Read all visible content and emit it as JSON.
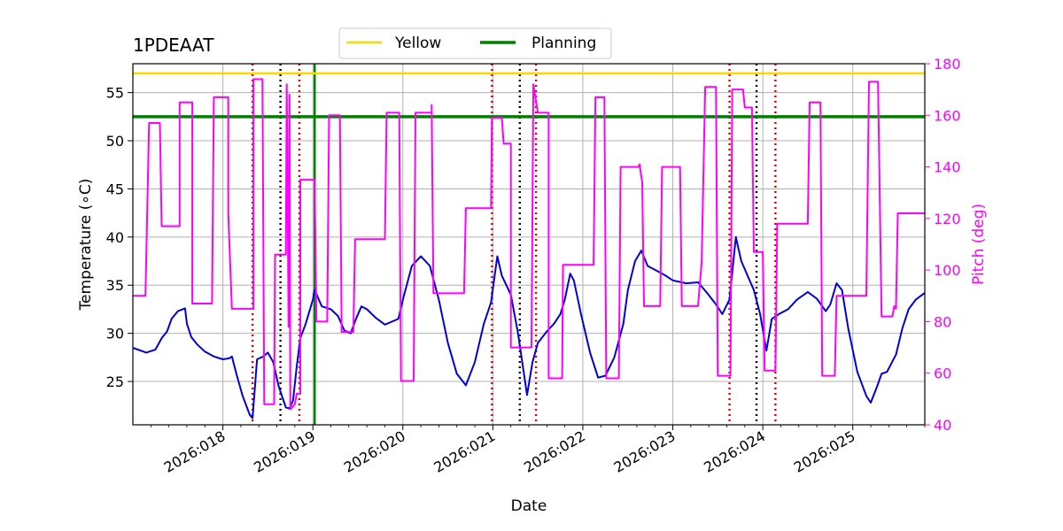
{
  "chart_data": {
    "type": "line",
    "title": "1PDEAAT",
    "xlabel": "Date",
    "ylabel_left": "Temperature ($^\\circ$C)",
    "ylabel_left_display": "Temperature (∘C)",
    "ylabel_right": "Pitch (deg)",
    "xlim": [
      17.0,
      25.8
    ],
    "ylim_left": [
      20.5,
      58.0
    ],
    "ylim_right": [
      40,
      180
    ],
    "x_ticks": [
      18,
      19,
      20,
      21,
      22,
      23,
      24,
      25
    ],
    "x_tick_labels": [
      "2026:018",
      "2026:019",
      "2026:020",
      "2026:021",
      "2026:022",
      "2026:023",
      "2026:024",
      "2026:025"
    ],
    "y_ticks_left": [
      25,
      30,
      35,
      40,
      45,
      50,
      55
    ],
    "y_ticks_right": [
      40,
      60,
      80,
      100,
      120,
      140,
      160,
      180
    ],
    "legend": [
      {
        "label": "Yellow",
        "color": "#ffd700"
      },
      {
        "label": "Planning",
        "color": "#008000"
      }
    ],
    "hlines": [
      {
        "name": "Yellow",
        "y": 57.0,
        "color": "#ffd700"
      },
      {
        "name": "Planning",
        "y": 52.5,
        "color": "#008000"
      }
    ],
    "vline_solid_green": [
      19.02
    ],
    "vlines_dotted_red": [
      18.33,
      18.85,
      20.99,
      21.48,
      23.63,
      24.14
    ],
    "vlines_dotted_black": [
      18.64,
      21.3,
      23.93
    ],
    "series": [
      {
        "name": "Temperature",
        "axis": "left",
        "color": "#0000dd",
        "points": [
          [
            17.0,
            28.5
          ],
          [
            17.15,
            28.0
          ],
          [
            17.25,
            28.3
          ],
          [
            17.32,
            29.5
          ],
          [
            17.38,
            30.2
          ],
          [
            17.43,
            31.5
          ],
          [
            17.5,
            32.3
          ],
          [
            17.58,
            32.6
          ],
          [
            17.6,
            31.0
          ],
          [
            17.65,
            29.6
          ],
          [
            17.72,
            28.8
          ],
          [
            17.8,
            28.1
          ],
          [
            17.9,
            27.6
          ],
          [
            18.0,
            27.3
          ],
          [
            18.07,
            27.4
          ],
          [
            18.1,
            27.6
          ],
          [
            18.15,
            25.8
          ],
          [
            18.22,
            23.5
          ],
          [
            18.3,
            21.5
          ],
          [
            18.33,
            21.2
          ],
          [
            18.38,
            27.3
          ],
          [
            18.45,
            27.6
          ],
          [
            18.5,
            28.0
          ],
          [
            18.56,
            27.0
          ],
          [
            18.62,
            24.5
          ],
          [
            18.7,
            22.3
          ],
          [
            18.74,
            22.2
          ],
          [
            18.78,
            23.0
          ],
          [
            18.82,
            26.5
          ],
          [
            18.86,
            29.5
          ],
          [
            18.92,
            31.0
          ],
          [
            19.0,
            33.5
          ],
          [
            19.02,
            34.5
          ],
          [
            19.1,
            32.8
          ],
          [
            19.2,
            32.5
          ],
          [
            19.28,
            31.8
          ],
          [
            19.35,
            30.3
          ],
          [
            19.42,
            30.0
          ],
          [
            19.48,
            31.5
          ],
          [
            19.54,
            32.8
          ],
          [
            19.6,
            32.5
          ],
          [
            19.7,
            31.6
          ],
          [
            19.8,
            30.9
          ],
          [
            19.9,
            31.3
          ],
          [
            19.95,
            31.5
          ],
          [
            20.0,
            33.5
          ],
          [
            20.1,
            37.0
          ],
          [
            20.2,
            38.0
          ],
          [
            20.3,
            37.0
          ],
          [
            20.4,
            33.5
          ],
          [
            20.5,
            29.0
          ],
          [
            20.6,
            25.8
          ],
          [
            20.7,
            24.6
          ],
          [
            20.8,
            27.0
          ],
          [
            20.9,
            31.0
          ],
          [
            20.98,
            33.2
          ],
          [
            21.05,
            38.0
          ],
          [
            21.1,
            36.0
          ],
          [
            21.2,
            34.0
          ],
          [
            21.28,
            30.0
          ],
          [
            21.38,
            23.6
          ],
          [
            21.44,
            27.0
          ],
          [
            21.5,
            29.0
          ],
          [
            21.6,
            30.2
          ],
          [
            21.68,
            31.0
          ],
          [
            21.75,
            32.0
          ],
          [
            21.8,
            33.5
          ],
          [
            21.86,
            36.2
          ],
          [
            21.9,
            35.5
          ],
          [
            21.98,
            32.0
          ],
          [
            22.08,
            28.0
          ],
          [
            22.17,
            25.4
          ],
          [
            22.25,
            25.6
          ],
          [
            22.35,
            27.5
          ],
          [
            22.45,
            31.0
          ],
          [
            22.5,
            34.5
          ],
          [
            22.58,
            37.5
          ],
          [
            22.65,
            38.6
          ],
          [
            22.72,
            37.0
          ],
          [
            22.82,
            36.5
          ],
          [
            22.92,
            36.0
          ],
          [
            23.0,
            35.5
          ],
          [
            23.15,
            35.2
          ],
          [
            23.28,
            35.3
          ],
          [
            23.38,
            34.2
          ],
          [
            23.48,
            33.0
          ],
          [
            23.55,
            32.0
          ],
          [
            23.63,
            33.5
          ],
          [
            23.7,
            40.0
          ],
          [
            23.76,
            37.5
          ],
          [
            23.83,
            36.0
          ],
          [
            23.9,
            34.5
          ],
          [
            23.97,
            32.0
          ],
          [
            24.04,
            28.2
          ],
          [
            24.1,
            31.5
          ],
          [
            24.18,
            32.0
          ],
          [
            24.28,
            32.5
          ],
          [
            24.38,
            33.5
          ],
          [
            24.5,
            34.3
          ],
          [
            24.6,
            33.6
          ],
          [
            24.7,
            32.3
          ],
          [
            24.75,
            33.0
          ],
          [
            24.82,
            35.2
          ],
          [
            24.88,
            34.5
          ],
          [
            24.95,
            30.5
          ],
          [
            25.05,
            26.0
          ],
          [
            25.15,
            23.5
          ],
          [
            25.2,
            22.8
          ],
          [
            25.27,
            24.5
          ],
          [
            25.32,
            25.8
          ],
          [
            25.38,
            26.0
          ],
          [
            25.48,
            27.8
          ],
          [
            25.55,
            30.5
          ],
          [
            25.62,
            32.5
          ],
          [
            25.7,
            33.5
          ],
          [
            25.8,
            34.2
          ]
        ]
      },
      {
        "name": "Pitch",
        "axis": "right",
        "color": "#ff00ff",
        "points": [
          [
            17.0,
            90
          ],
          [
            17.14,
            90
          ],
          [
            17.18,
            157
          ],
          [
            17.3,
            157
          ],
          [
            17.32,
            117
          ],
          [
            17.52,
            117
          ],
          [
            17.52,
            165
          ],
          [
            17.66,
            165
          ],
          [
            17.66,
            87
          ],
          [
            17.88,
            87
          ],
          [
            17.9,
            167
          ],
          [
            18.06,
            167
          ],
          [
            18.06,
            122
          ],
          [
            18.1,
            85
          ],
          [
            18.34,
            85
          ],
          [
            18.34,
            174
          ],
          [
            18.44,
            174
          ],
          [
            18.46,
            48
          ],
          [
            18.57,
            48
          ],
          [
            18.58,
            106
          ],
          [
            18.7,
            106
          ],
          [
            18.71,
            172
          ],
          [
            18.73,
            78
          ],
          [
            18.74,
            168
          ],
          [
            18.75,
            46
          ],
          [
            18.8,
            48
          ],
          [
            18.82,
            52
          ],
          [
            18.86,
            52
          ],
          [
            18.86,
            135
          ],
          [
            19.02,
            135
          ],
          [
            19.04,
            80
          ],
          [
            19.16,
            80
          ],
          [
            19.18,
            160
          ],
          [
            19.3,
            160
          ],
          [
            19.32,
            76
          ],
          [
            19.45,
            76
          ],
          [
            19.47,
            112
          ],
          [
            19.8,
            112
          ],
          [
            19.82,
            161
          ],
          [
            19.96,
            161
          ],
          [
            19.98,
            57
          ],
          [
            20.12,
            57
          ],
          [
            20.14,
            161
          ],
          [
            20.32,
            161
          ],
          [
            20.32,
            164
          ],
          [
            20.34,
            91
          ],
          [
            20.68,
            91
          ],
          [
            20.7,
            124
          ],
          [
            20.98,
            124
          ],
          [
            20.99,
            159
          ],
          [
            21.1,
            159
          ],
          [
            21.12,
            149
          ],
          [
            21.2,
            149
          ],
          [
            21.2,
            70
          ],
          [
            21.43,
            70
          ],
          [
            21.45,
            172
          ],
          [
            21.5,
            161
          ],
          [
            21.62,
            161
          ],
          [
            21.62,
            58
          ],
          [
            21.77,
            58
          ],
          [
            21.78,
            102
          ],
          [
            22.12,
            102
          ],
          [
            22.14,
            167
          ],
          [
            22.24,
            167
          ],
          [
            22.26,
            58
          ],
          [
            22.4,
            58
          ],
          [
            22.42,
            140
          ],
          [
            22.62,
            140
          ],
          [
            22.63,
            141
          ],
          [
            22.66,
            134
          ],
          [
            22.68,
            86
          ],
          [
            22.86,
            86
          ],
          [
            22.88,
            140
          ],
          [
            23.08,
            140
          ],
          [
            23.1,
            86
          ],
          [
            23.28,
            86
          ],
          [
            23.32,
            103
          ],
          [
            23.36,
            171
          ],
          [
            23.48,
            171
          ],
          [
            23.5,
            59
          ],
          [
            23.64,
            59
          ],
          [
            23.66,
            170
          ],
          [
            23.78,
            170
          ],
          [
            23.8,
            163
          ],
          [
            23.88,
            163
          ],
          [
            23.9,
            107
          ],
          [
            24.0,
            107
          ],
          [
            24.02,
            61
          ],
          [
            24.14,
            61
          ],
          [
            24.16,
            118
          ],
          [
            24.5,
            118
          ],
          [
            24.52,
            165
          ],
          [
            24.64,
            165
          ],
          [
            24.66,
            59
          ],
          [
            24.8,
            59
          ],
          [
            24.82,
            90
          ],
          [
            25.15,
            90
          ],
          [
            25.18,
            173
          ],
          [
            25.28,
            173
          ],
          [
            25.32,
            82
          ],
          [
            25.44,
            82
          ],
          [
            25.46,
            86
          ],
          [
            25.48,
            85
          ],
          [
            25.5,
            122
          ],
          [
            25.8,
            122
          ]
        ]
      }
    ]
  }
}
